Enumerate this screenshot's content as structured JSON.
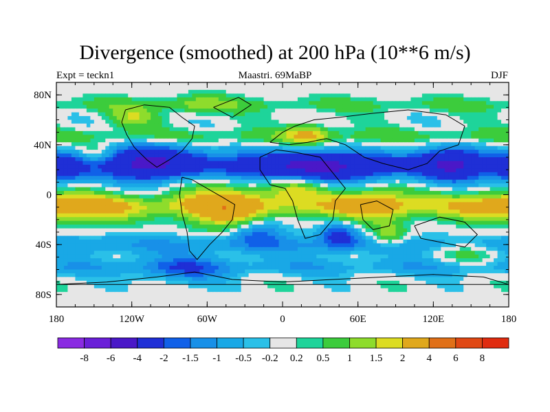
{
  "chart_data": {
    "type": "heatmap",
    "title": "Divergence (smoothed) at 200 hPa (10**6 m/s)",
    "subtitle_left": "Expt = teckn1",
    "subtitle_center": "Maastri.  69MaBP",
    "subtitle_right": "DJF",
    "xlabel": "",
    "ylabel": "",
    "xlim": [
      -180,
      180
    ],
    "ylim": [
      -90,
      90
    ],
    "x_ticks": [
      {
        "value": -180,
        "label": "180"
      },
      {
        "value": -120,
        "label": "120W"
      },
      {
        "value": -60,
        "label": "60W"
      },
      {
        "value": 0,
        "label": "0"
      },
      {
        "value": 60,
        "label": "60E"
      },
      {
        "value": 120,
        "label": "120E"
      },
      {
        "value": 180,
        "label": "180"
      }
    ],
    "y_ticks": [
      {
        "value": 80,
        "label": "80N"
      },
      {
        "value": 40,
        "label": "40N"
      },
      {
        "value": 0,
        "label": "0"
      },
      {
        "value": -40,
        "label": "40S"
      },
      {
        "value": -80,
        "label": "80S"
      }
    ],
    "colorbar_labels": [
      "-8",
      "-6",
      "-4",
      "-2",
      "-1.5",
      "-1",
      "-0.5",
      "-0.2",
      "0.2",
      "0.5",
      "1",
      "1.5",
      "2",
      "4",
      "6",
      "8"
    ],
    "colorbar_colors": [
      "#8a2be2",
      "#6a1fd8",
      "#4a18c8",
      "#1f2fd6",
      "#1060e8",
      "#1890e8",
      "#19a8e6",
      "#2ac0e8",
      "#e6e6e6",
      "#1ed49a",
      "#3ccc3c",
      "#8edc2c",
      "#dcdc22",
      "#e0a81c",
      "#e07018",
      "#e04814",
      "#e02c10"
    ],
    "field_approx": [
      {
        "lon": -110,
        "lat": 30,
        "value": -4,
        "desc": "North Pacific/N. America convergence"
      },
      {
        "lon": 20,
        "lat": 22,
        "value": -4,
        "desc": "Tethys/Africa convergence band"
      },
      {
        "lon": 130,
        "lat": 25,
        "value": -4,
        "desc": "East Asia convergence"
      },
      {
        "lon": -40,
        "lat": -8,
        "value": 2,
        "desc": "South America divergence"
      },
      {
        "lon": 80,
        "lat": -10,
        "value": 2,
        "desc": "Indian Ocean divergence"
      },
      {
        "lon": -100,
        "lat": -35,
        "value": 1,
        "desc": "South Pacific"
      },
      {
        "lon": 150,
        "lat": -50,
        "value": -1,
        "desc": "Southern Ocean"
      }
    ]
  }
}
